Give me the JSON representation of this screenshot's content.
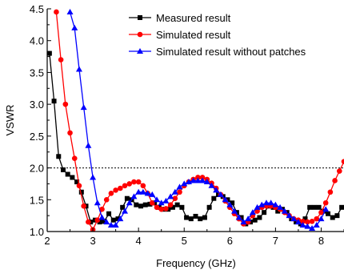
{
  "chart_data": {
    "type": "line",
    "xlabel": "Frequency  (GHz)",
    "ylabel": "VSWR",
    "xlim": [
      2.0,
      8.5
    ],
    "ylim": [
      1.0,
      4.5
    ],
    "xticks": [
      "2",
      "3",
      "4",
      "5",
      "6",
      "7",
      "8"
    ],
    "yticks": [
      "1.0",
      "1.5",
      "2.0",
      "2.5",
      "3.0",
      "3.5",
      "4.0",
      "4.5"
    ],
    "reference_line": {
      "y": 2.0,
      "style": "dotted"
    },
    "legend_position": "top-right",
    "series": [
      {
        "name": "Measured result",
        "color": "#000000",
        "marker": "square",
        "points": [
          [
            2.05,
            3.8
          ],
          [
            2.15,
            3.05
          ],
          [
            2.25,
            2.18
          ],
          [
            2.35,
            1.97
          ],
          [
            2.45,
            1.9
          ],
          [
            2.55,
            1.85
          ],
          [
            2.65,
            1.78
          ],
          [
            2.75,
            1.62
          ],
          [
            2.85,
            1.4
          ],
          [
            2.95,
            1.15
          ],
          [
            3.05,
            1.18
          ],
          [
            3.15,
            1.15
          ],
          [
            3.25,
            1.16
          ],
          [
            3.35,
            1.28
          ],
          [
            3.45,
            1.18
          ],
          [
            3.55,
            1.2
          ],
          [
            3.65,
            1.38
          ],
          [
            3.75,
            1.52
          ],
          [
            3.85,
            1.5
          ],
          [
            3.95,
            1.42
          ],
          [
            4.05,
            1.4
          ],
          [
            4.15,
            1.42
          ],
          [
            4.25,
            1.43
          ],
          [
            4.35,
            1.45
          ],
          [
            4.45,
            1.38
          ],
          [
            4.55,
            1.35
          ],
          [
            4.65,
            1.35
          ],
          [
            4.75,
            1.38
          ],
          [
            4.85,
            1.42
          ],
          [
            4.95,
            1.38
          ],
          [
            5.05,
            1.22
          ],
          [
            5.15,
            1.2
          ],
          [
            5.25,
            1.24
          ],
          [
            5.35,
            1.2
          ],
          [
            5.45,
            1.22
          ],
          [
            5.55,
            1.38
          ],
          [
            5.65,
            1.52
          ],
          [
            5.75,
            1.58
          ],
          [
            5.85,
            1.55
          ],
          [
            5.95,
            1.5
          ],
          [
            6.05,
            1.45
          ],
          [
            6.15,
            1.3
          ],
          [
            6.25,
            1.22
          ],
          [
            6.35,
            1.12
          ],
          [
            6.45,
            1.15
          ],
          [
            6.55,
            1.18
          ],
          [
            6.65,
            1.22
          ],
          [
            6.75,
            1.3
          ],
          [
            6.85,
            1.4
          ],
          [
            6.95,
            1.38
          ],
          [
            7.05,
            1.32
          ],
          [
            7.15,
            1.35
          ],
          [
            7.25,
            1.3
          ],
          [
            7.35,
            1.2
          ],
          [
            7.45,
            1.15
          ],
          [
            7.55,
            1.12
          ],
          [
            7.65,
            1.2
          ],
          [
            7.75,
            1.38
          ],
          [
            7.85,
            1.38
          ],
          [
            7.95,
            1.38
          ],
          [
            8.05,
            1.32
          ],
          [
            8.15,
            1.28
          ],
          [
            8.25,
            1.22
          ],
          [
            8.35,
            1.25
          ],
          [
            8.45,
            1.38
          ]
        ]
      },
      {
        "name": "Simulated result",
        "color": "#ff0000",
        "marker": "circle",
        "points": [
          [
            2.2,
            4.45
          ],
          [
            2.3,
            3.7
          ],
          [
            2.4,
            3.0
          ],
          [
            2.5,
            2.55
          ],
          [
            2.6,
            2.15
          ],
          [
            2.7,
            1.72
          ],
          [
            2.8,
            1.4
          ],
          [
            2.9,
            1.15
          ],
          [
            3.0,
            1.03
          ],
          [
            3.1,
            1.18
          ],
          [
            3.2,
            1.35
          ],
          [
            3.3,
            1.5
          ],
          [
            3.4,
            1.6
          ],
          [
            3.5,
            1.65
          ],
          [
            3.6,
            1.68
          ],
          [
            3.7,
            1.72
          ],
          [
            3.8,
            1.75
          ],
          [
            3.9,
            1.78
          ],
          [
            4.0,
            1.78
          ],
          [
            4.1,
            1.72
          ],
          [
            4.2,
            1.6
          ],
          [
            4.3,
            1.45
          ],
          [
            4.4,
            1.38
          ],
          [
            4.5,
            1.35
          ],
          [
            4.6,
            1.36
          ],
          [
            4.7,
            1.42
          ],
          [
            4.8,
            1.52
          ],
          [
            4.9,
            1.62
          ],
          [
            5.0,
            1.72
          ],
          [
            5.1,
            1.78
          ],
          [
            5.2,
            1.82
          ],
          [
            5.3,
            1.85
          ],
          [
            5.4,
            1.85
          ],
          [
            5.5,
            1.82
          ],
          [
            5.6,
            1.76
          ],
          [
            5.7,
            1.68
          ],
          [
            5.8,
            1.58
          ],
          [
            5.9,
            1.48
          ],
          [
            6.0,
            1.38
          ],
          [
            6.1,
            1.28
          ],
          [
            6.2,
            1.2
          ],
          [
            6.3,
            1.12
          ],
          [
            6.4,
            1.15
          ],
          [
            6.5,
            1.25
          ],
          [
            6.6,
            1.32
          ],
          [
            6.7,
            1.38
          ],
          [
            6.8,
            1.4
          ],
          [
            6.9,
            1.4
          ],
          [
            7.0,
            1.38
          ],
          [
            7.1,
            1.35
          ],
          [
            7.2,
            1.3
          ],
          [
            7.3,
            1.25
          ],
          [
            7.4,
            1.2
          ],
          [
            7.5,
            1.18
          ],
          [
            7.6,
            1.16
          ],
          [
            7.7,
            1.15
          ],
          [
            7.8,
            1.16
          ],
          [
            7.9,
            1.2
          ],
          [
            8.0,
            1.3
          ],
          [
            8.1,
            1.45
          ],
          [
            8.2,
            1.62
          ],
          [
            8.3,
            1.8
          ],
          [
            8.4,
            1.95
          ],
          [
            8.5,
            2.1
          ]
        ]
      },
      {
        "name": "Simulated result without patches",
        "color": "#0000ff",
        "marker": "triangle",
        "points": [
          [
            2.5,
            4.45
          ],
          [
            2.6,
            4.2
          ],
          [
            2.7,
            3.55
          ],
          [
            2.8,
            2.95
          ],
          [
            2.9,
            2.35
          ],
          [
            3.0,
            1.85
          ],
          [
            3.1,
            1.45
          ],
          [
            3.2,
            1.22
          ],
          [
            3.3,
            1.15
          ],
          [
            3.4,
            1.1
          ],
          [
            3.5,
            1.1
          ],
          [
            3.6,
            1.2
          ],
          [
            3.7,
            1.32
          ],
          [
            3.8,
            1.45
          ],
          [
            3.9,
            1.55
          ],
          [
            4.0,
            1.62
          ],
          [
            4.1,
            1.62
          ],
          [
            4.2,
            1.6
          ],
          [
            4.3,
            1.58
          ],
          [
            4.4,
            1.5
          ],
          [
            4.5,
            1.45
          ],
          [
            4.6,
            1.48
          ],
          [
            4.7,
            1.55
          ],
          [
            4.8,
            1.62
          ],
          [
            4.9,
            1.7
          ],
          [
            5.0,
            1.75
          ],
          [
            5.1,
            1.78
          ],
          [
            5.2,
            1.8
          ],
          [
            5.3,
            1.8
          ],
          [
            5.4,
            1.8
          ],
          [
            5.5,
            1.78
          ],
          [
            5.6,
            1.72
          ],
          [
            5.7,
            1.65
          ],
          [
            5.8,
            1.58
          ],
          [
            5.9,
            1.5
          ],
          [
            6.0,
            1.42
          ],
          [
            6.1,
            1.32
          ],
          [
            6.2,
            1.22
          ],
          [
            6.3,
            1.15
          ],
          [
            6.4,
            1.2
          ],
          [
            6.5,
            1.3
          ],
          [
            6.6,
            1.38
          ],
          [
            6.7,
            1.42
          ],
          [
            6.8,
            1.45
          ],
          [
            6.9,
            1.45
          ],
          [
            7.0,
            1.42
          ],
          [
            7.1,
            1.38
          ],
          [
            7.2,
            1.32
          ],
          [
            7.3,
            1.25
          ],
          [
            7.4,
            1.2
          ],
          [
            7.5,
            1.15
          ],
          [
            7.6,
            1.1
          ],
          [
            7.7,
            1.08
          ],
          [
            7.8,
            1.05
          ],
          [
            7.9,
            1.1
          ],
          [
            8.0,
            1.2
          ],
          [
            8.1,
            1.35
          ]
        ]
      }
    ]
  }
}
